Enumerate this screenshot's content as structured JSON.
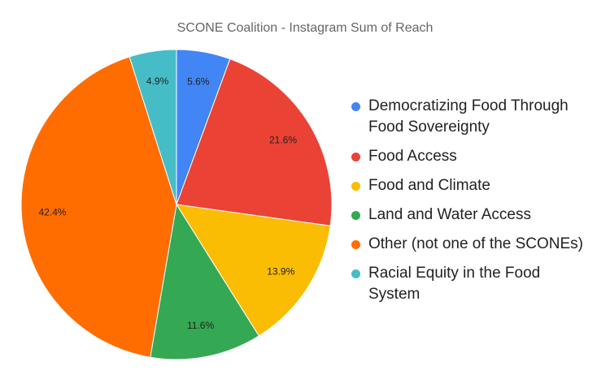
{
  "chart_data": {
    "type": "pie",
    "title": "SCONE Coalition - Instagram Sum of Reach",
    "categories": [
      "Democratizing Food Through Food Sovereignty",
      "Food Access",
      "Food and Climate",
      "Land and Water Access",
      "Other (not one of the SCONEs)",
      "Racial Equity in the Food System"
    ],
    "values": [
      5.6,
      21.6,
      13.9,
      11.6,
      42.4,
      4.9
    ],
    "value_labels": [
      "5.6%",
      "21.6%",
      "13.9%",
      "11.6%",
      "42.4%",
      "4.9%"
    ],
    "colors": [
      "#4285f4",
      "#ea4335",
      "#fbbc04",
      "#34a853",
      "#ff6d01",
      "#46bdc6"
    ],
    "legend": "right"
  }
}
